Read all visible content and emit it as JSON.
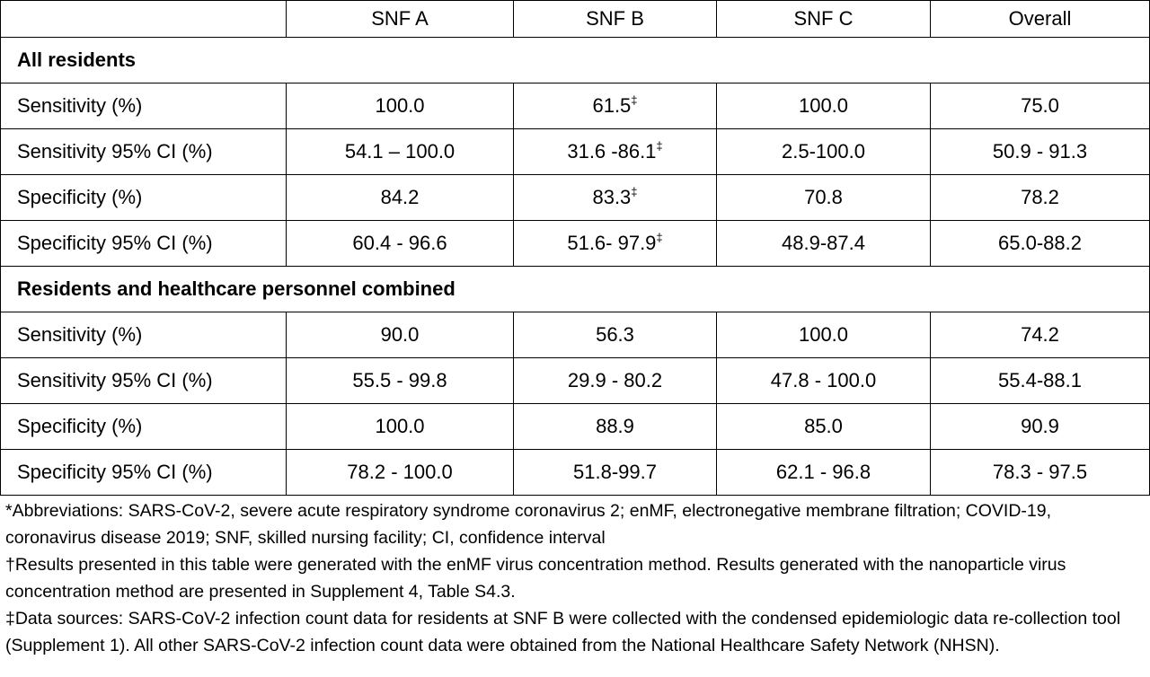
{
  "table": {
    "header": [
      "SNF A",
      "SNF B",
      "SNF C",
      "Overall"
    ],
    "sections": [
      {
        "title": "All residents",
        "rows": [
          {
            "label": "Sensitivity (%)",
            "cells": [
              "100.0",
              {
                "text": "61.5",
                "sup": "‡"
              },
              "100.0",
              "75.0"
            ]
          },
          {
            "label": "Sensitivity 95% CI (%)",
            "cells": [
              "54.1 – 100.0",
              {
                "text": "31.6 -86.1",
                "sup": "‡"
              },
              "2.5-100.0",
              "50.9 - 91.3"
            ]
          },
          {
            "label": "Specificity (%)",
            "cells": [
              "84.2",
              {
                "text": "83.3",
                "sup": "‡"
              },
              "70.8",
              "78.2"
            ]
          },
          {
            "label": "Specificity 95% CI (%)",
            "cells": [
              "60.4 - 96.6",
              {
                "text": "51.6- 97.9",
                "sup": "‡"
              },
              "48.9-87.4",
              "65.0-88.2"
            ]
          }
        ]
      },
      {
        "title": "Residents and healthcare personnel combined",
        "rows": [
          {
            "label": "Sensitivity (%)",
            "cells": [
              "90.0",
              "56.3",
              "100.0",
              "74.2"
            ]
          },
          {
            "label": "Sensitivity 95% CI (%)",
            "cells": [
              "55.5 - 99.8",
              "29.9 - 80.2",
              "47.8 - 100.0",
              "55.4-88.1"
            ]
          },
          {
            "label": "Specificity (%)",
            "cells": [
              "100.0",
              "88.9",
              "85.0",
              "90.9"
            ]
          },
          {
            "label": "Specificity 95% CI (%)",
            "cells": [
              "78.2 - 100.0",
              "51.8-99.7",
              "62.1 - 96.8",
              "78.3 - 97.5"
            ]
          }
        ]
      }
    ],
    "footnotes": [
      "*Abbreviations: SARS-CoV-2, severe acute respiratory syndrome coronavirus 2; enMF, electronegative membrane filtration; COVID-19, coronavirus disease 2019; SNF, skilled nursing facility; CI, confidence interval",
      "†Results presented in this table were generated with the enMF virus concentration method. Results generated with the nanoparticle virus concentration method are presented in Supplement 4, Table S4.3.",
      "‡Data sources: SARS-CoV-2 infection count data for residents at SNF B were collected with the condensed epidemiologic data re-collection tool (Supplement 1). All other SARS-CoV-2 infection count data were obtained from the National Healthcare Safety Network (NHSN)."
    ]
  }
}
